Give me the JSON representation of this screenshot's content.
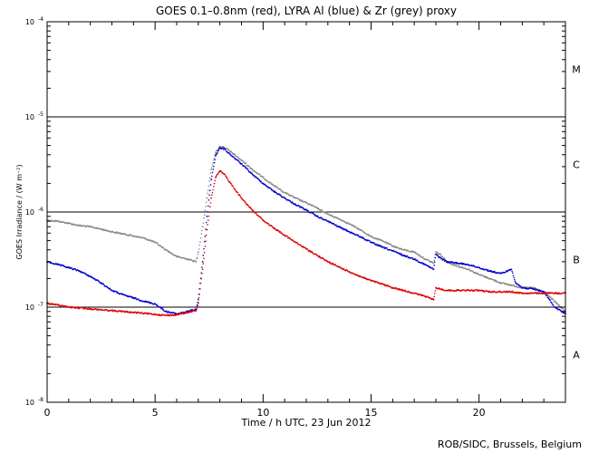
{
  "chart_data": {
    "type": "scatter",
    "title": "GOES 0.1–0.8nm (red), LYRA Al (blue) & Zr (grey) proxy",
    "xlabel": "Time / h UTC, 23 Jun 2012",
    "ylabel": "GOES Irradiance / (W m⁻²)",
    "y_scale": "log",
    "xlim": [
      0,
      24
    ],
    "ylim": [
      1e-08,
      0.0001
    ],
    "x_ticks": [
      0,
      5,
      10,
      15,
      20
    ],
    "x_tick_labels": [
      "0",
      "5",
      "10",
      "15",
      "20"
    ],
    "y_ticks": [
      1e-08,
      1e-07,
      1e-06,
      1e-05,
      0.0001
    ],
    "y_tick_labels": [
      {
        "base": "10",
        "exp": "-8"
      },
      {
        "base": "10",
        "exp": "-7"
      },
      {
        "base": "10",
        "exp": "-6"
      },
      {
        "base": "10",
        "exp": "-5"
      },
      {
        "base": "10",
        "exp": "-4"
      }
    ],
    "reference_lines": [
      1e-07,
      1e-06,
      1e-05
    ],
    "flare_classes": [
      {
        "label": "A",
        "y": 3.16e-08
      },
      {
        "label": "B",
        "y": 3.16e-07
      },
      {
        "label": "C",
        "y": 3.16e-06
      },
      {
        "label": "M",
        "y": 3.16e-05
      }
    ],
    "grid": false,
    "series": [
      {
        "color": "#888888",
        "points": [
          [
            0,
            8.2e-07
          ],
          [
            0.5,
            8e-07
          ],
          [
            1,
            7.6e-07
          ],
          [
            1.5,
            7.2e-07
          ],
          [
            2,
            7e-07
          ],
          [
            2.5,
            6.6e-07
          ],
          [
            3,
            6.2e-07
          ],
          [
            3.5,
            5.9e-07
          ],
          [
            4,
            5.6e-07
          ],
          [
            4.5,
            5.3e-07
          ],
          [
            5,
            4.8e-07
          ],
          [
            5.5,
            4e-07
          ],
          [
            6,
            3.4e-07
          ],
          [
            6.5,
            3.2e-07
          ],
          [
            6.9,
            3e-07
          ],
          [
            7.0,
            3.8e-07
          ],
          [
            7.2,
            7e-07
          ],
          [
            7.4,
            1.4e-06
          ],
          [
            7.6,
            2.8e-06
          ],
          [
            7.8,
            4.2e-06
          ],
          [
            8.0,
            4.9e-06
          ],
          [
            8.2,
            4.8e-06
          ],
          [
            8.5,
            4.3e-06
          ],
          [
            9,
            3.5e-06
          ],
          [
            9.5,
            2.8e-06
          ],
          [
            10,
            2.3e-06
          ],
          [
            10.5,
            1.9e-06
          ],
          [
            11,
            1.6e-06
          ],
          [
            11.5,
            1.4e-06
          ],
          [
            12,
            1.25e-06
          ],
          [
            12.5,
            1.1e-06
          ],
          [
            13,
            9.5e-07
          ],
          [
            13.5,
            8.5e-07
          ],
          [
            14,
            7.5e-07
          ],
          [
            14.5,
            6.5e-07
          ],
          [
            15,
            5.5e-07
          ],
          [
            15.5,
            5e-07
          ],
          [
            16,
            4.4e-07
          ],
          [
            16.5,
            4e-07
          ],
          [
            17,
            3.8e-07
          ],
          [
            17.5,
            3.2e-07
          ],
          [
            17.9,
            2.9e-07
          ],
          [
            18,
            3.8e-07
          ],
          [
            18.2,
            3.6e-07
          ],
          [
            18.5,
            3e-07
          ],
          [
            19,
            2.7e-07
          ],
          [
            19.5,
            2.5e-07
          ],
          [
            20,
            2.2e-07
          ],
          [
            20.5,
            2e-07
          ],
          [
            21,
            1.8e-07
          ],
          [
            21.5,
            1.7e-07
          ],
          [
            22,
            1.6e-07
          ],
          [
            22.5,
            1.6e-07
          ],
          [
            23,
            1.45e-07
          ],
          [
            23.5,
            1.15e-07
          ],
          [
            24,
            9e-08
          ]
        ]
      },
      {
        "color": "#0000cc",
        "points": [
          [
            0,
            3e-07
          ],
          [
            0.5,
            2.8e-07
          ],
          [
            1,
            2.6e-07
          ],
          [
            1.5,
            2.4e-07
          ],
          [
            2,
            2.1e-07
          ],
          [
            2.5,
            1.8e-07
          ],
          [
            3,
            1.5e-07
          ],
          [
            3.5,
            1.35e-07
          ],
          [
            4,
            1.25e-07
          ],
          [
            4.5,
            1.15e-07
          ],
          [
            5,
            1.08e-07
          ],
          [
            5.5,
            9e-08
          ],
          [
            6,
            8.5e-08
          ],
          [
            6.5,
            9e-08
          ],
          [
            6.9,
            9.5e-08
          ],
          [
            7.0,
            1.2e-07
          ],
          [
            7.2,
            3e-07
          ],
          [
            7.4,
            9e-07
          ],
          [
            7.6,
            2.2e-06
          ],
          [
            7.8,
            3.9e-06
          ],
          [
            8.0,
            4.7e-06
          ],
          [
            8.2,
            4.6e-06
          ],
          [
            8.5,
            4e-06
          ],
          [
            9,
            3.2e-06
          ],
          [
            9.5,
            2.5e-06
          ],
          [
            10,
            2e-06
          ],
          [
            10.5,
            1.65e-06
          ],
          [
            11,
            1.4e-06
          ],
          [
            11.5,
            1.2e-06
          ],
          [
            12,
            1.05e-06
          ],
          [
            12.5,
            9e-07
          ],
          [
            13,
            8e-07
          ],
          [
            13.5,
            7e-07
          ],
          [
            14,
            6.2e-07
          ],
          [
            14.5,
            5.5e-07
          ],
          [
            15,
            4.8e-07
          ],
          [
            15.5,
            4.3e-07
          ],
          [
            16,
            3.9e-07
          ],
          [
            16.5,
            3.5e-07
          ],
          [
            17,
            3.2e-07
          ],
          [
            17.5,
            2.8e-07
          ],
          [
            17.9,
            2.5e-07
          ],
          [
            18,
            3.6e-07
          ],
          [
            18.2,
            3.3e-07
          ],
          [
            18.5,
            3e-07
          ],
          [
            19,
            2.9e-07
          ],
          [
            19.5,
            2.8e-07
          ],
          [
            20,
            2.6e-07
          ],
          [
            20.5,
            2.4e-07
          ],
          [
            21,
            2.25e-07
          ],
          [
            21.5,
            2.5e-07
          ],
          [
            21.7,
            1.8e-07
          ],
          [
            22,
            1.6e-07
          ],
          [
            22.5,
            1.55e-07
          ],
          [
            23,
            1.45e-07
          ],
          [
            23.5,
            1e-07
          ],
          [
            24,
            8.5e-08
          ]
        ]
      },
      {
        "color": "#dd0000",
        "points": [
          [
            0,
            1.1e-07
          ],
          [
            0.5,
            1.05e-07
          ],
          [
            1,
            1e-07
          ],
          [
            1.5,
            9.8e-08
          ],
          [
            2,
            9.6e-08
          ],
          [
            2.5,
            9.4e-08
          ],
          [
            3,
            9.2e-08
          ],
          [
            3.5,
            9e-08
          ],
          [
            4,
            8.8e-08
          ],
          [
            4.5,
            8.6e-08
          ],
          [
            5,
            8.4e-08
          ],
          [
            5.5,
            8.2e-08
          ],
          [
            6,
            8.3e-08
          ],
          [
            6.5,
            8.8e-08
          ],
          [
            6.9,
            9.2e-08
          ],
          [
            7.0,
            1.1e-07
          ],
          [
            7.2,
            2.5e-07
          ],
          [
            7.4,
            6.5e-07
          ],
          [
            7.6,
            1.4e-06
          ],
          [
            7.8,
            2.3e-06
          ],
          [
            8.0,
            2.7e-06
          ],
          [
            8.2,
            2.5e-06
          ],
          [
            8.5,
            2e-06
          ],
          [
            9,
            1.4e-06
          ],
          [
            9.5,
            1.05e-06
          ],
          [
            10,
            8.2e-07
          ],
          [
            10.5,
            6.8e-07
          ],
          [
            11,
            5.7e-07
          ],
          [
            11.5,
            4.8e-07
          ],
          [
            12,
            4.1e-07
          ],
          [
            12.5,
            3.5e-07
          ],
          [
            13,
            3e-07
          ],
          [
            13.5,
            2.65e-07
          ],
          [
            14,
            2.35e-07
          ],
          [
            14.5,
            2.1e-07
          ],
          [
            15,
            1.9e-07
          ],
          [
            15.5,
            1.75e-07
          ],
          [
            16,
            1.6e-07
          ],
          [
            16.5,
            1.5e-07
          ],
          [
            17,
            1.4e-07
          ],
          [
            17.5,
            1.3e-07
          ],
          [
            17.9,
            1.2e-07
          ],
          [
            18,
            1.6e-07
          ],
          [
            18.2,
            1.55e-07
          ],
          [
            18.5,
            1.5e-07
          ],
          [
            19,
            1.5e-07
          ],
          [
            19.5,
            1.5e-07
          ],
          [
            20,
            1.5e-07
          ],
          [
            20.5,
            1.45e-07
          ],
          [
            21,
            1.45e-07
          ],
          [
            21.5,
            1.45e-07
          ],
          [
            22,
            1.4e-07
          ],
          [
            22.5,
            1.4e-07
          ],
          [
            23,
            1.4e-07
          ],
          [
            23.5,
            1.4e-07
          ],
          [
            24,
            1.4e-07
          ]
        ]
      }
    ]
  },
  "footer": {
    "credit": "ROB/SIDC, Brussels, Belgium"
  }
}
